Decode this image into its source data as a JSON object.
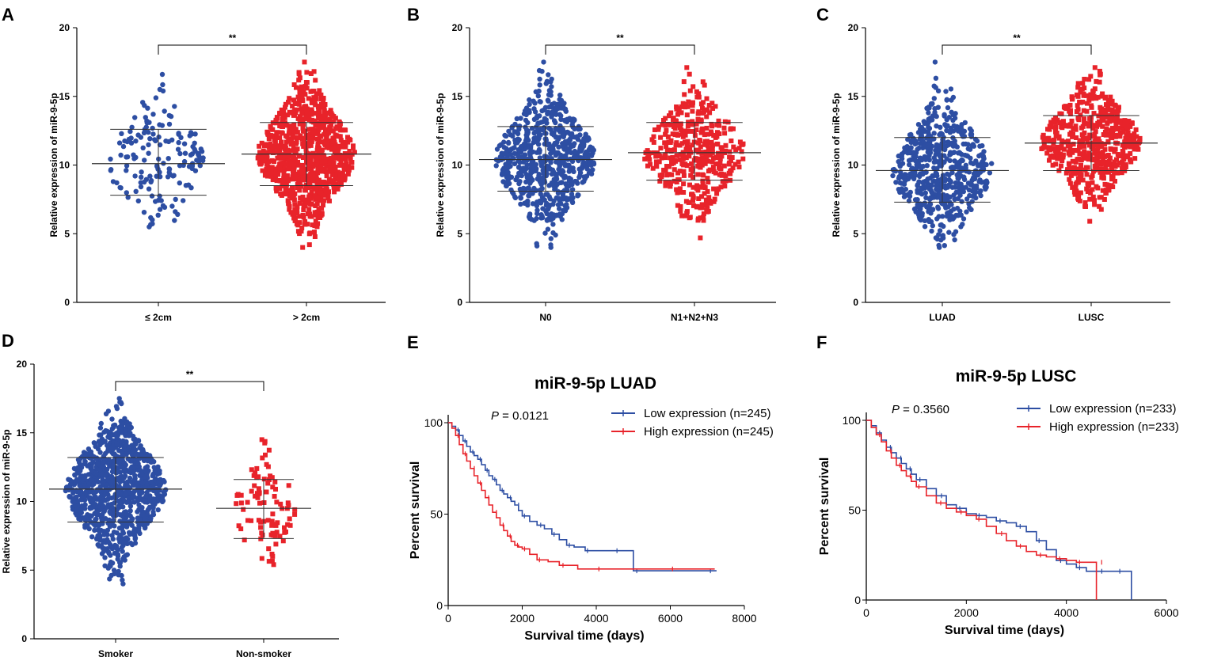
{
  "colors": {
    "low": "#2d4ea3",
    "high": "#e8232a",
    "axis": "#000000"
  },
  "chart_data": [
    {
      "id": "A",
      "type": "scatter",
      "panel_label": "A",
      "ylabel": "Relative expression of miR-9-5p",
      "ylim": [
        0,
        20
      ],
      "yticks": [
        0,
        5,
        10,
        15,
        20
      ],
      "significance": "**",
      "groups": [
        {
          "name": "≤ 2cm",
          "shape": "circle",
          "color": "blue",
          "n": 160,
          "min": 5.5,
          "max": 16.6,
          "mean": 10.1,
          "sd_low": 7.8,
          "sd_high": 12.6,
          "seed": 11
        },
        {
          "name": "> 2cm",
          "shape": "square",
          "color": "red",
          "n": 900,
          "min": 4.0,
          "max": 17.5,
          "mean": 10.8,
          "sd_low": 8.5,
          "sd_high": 13.1,
          "seed": 12
        }
      ]
    },
    {
      "id": "B",
      "type": "scatter",
      "panel_label": "B",
      "ylabel": "Relative expression of miR-9-5p",
      "ylim": [
        0,
        20
      ],
      "yticks": [
        0,
        5,
        10,
        15,
        20
      ],
      "significance": "**",
      "groups": [
        {
          "name": "N0",
          "shape": "circle",
          "color": "blue",
          "n": 700,
          "min": 4.0,
          "max": 17.5,
          "mean": 10.4,
          "sd_low": 8.1,
          "sd_high": 12.8,
          "seed": 21
        },
        {
          "name": "N1+N2+N3",
          "shape": "square",
          "color": "red",
          "n": 420,
          "min": 4.7,
          "max": 17.1,
          "mean": 10.9,
          "sd_low": 8.9,
          "sd_high": 13.1,
          "seed": 22
        }
      ]
    },
    {
      "id": "C",
      "type": "scatter",
      "panel_label": "C",
      "ylabel": "Relative expression of miR-9-5p",
      "ylim": [
        0,
        20
      ],
      "yticks": [
        0,
        5,
        10,
        15,
        20
      ],
      "significance": "**",
      "groups": [
        {
          "name": "LUAD",
          "shape": "circle",
          "color": "blue",
          "n": 620,
          "min": 4.0,
          "max": 17.5,
          "mean": 9.6,
          "sd_low": 7.3,
          "sd_high": 12.0,
          "seed": 31
        },
        {
          "name": "LUSC",
          "shape": "square",
          "color": "red",
          "n": 560,
          "min": 5.9,
          "max": 17.1,
          "mean": 11.6,
          "sd_low": 9.6,
          "sd_high": 13.6,
          "seed": 32
        }
      ]
    },
    {
      "id": "D",
      "type": "scatter",
      "panel_label": "D",
      "ylabel": "Relative expression of miR-9-5p",
      "ylim": [
        0,
        20
      ],
      "yticks": [
        0,
        5,
        10,
        15,
        20
      ],
      "significance": "**",
      "groups": [
        {
          "name": "Smoker",
          "shape": "circle",
          "color": "blue",
          "n": 1000,
          "min": 4.0,
          "max": 17.5,
          "mean": 10.9,
          "sd_low": 8.5,
          "sd_high": 13.2,
          "seed": 41
        },
        {
          "name": "Non-smoker",
          "shape": "square",
          "color": "red",
          "n": 90,
          "min": 5.4,
          "max": 14.5,
          "mean": 9.5,
          "sd_low": 7.3,
          "sd_high": 11.6,
          "seed": 42
        }
      ]
    },
    {
      "id": "E",
      "type": "line",
      "panel_label": "E",
      "title": "miR-9-5p LUAD",
      "p_value": "0.0121",
      "xlabel": "Survival time (days)",
      "ylabel": "Percent survival",
      "xlim": [
        0,
        8000
      ],
      "xticks": [
        0,
        2000,
        4000,
        6000,
        8000
      ],
      "ylim": [
        0,
        100
      ],
      "yticks": [
        0,
        50,
        100
      ],
      "series": [
        {
          "name": "Low expression (n=245)",
          "color": "blue",
          "x": [
            0,
            100,
            200,
            300,
            400,
            500,
            600,
            700,
            800,
            900,
            1000,
            1100,
            1200,
            1300,
            1400,
            1500,
            1600,
            1700,
            1800,
            1900,
            2000,
            2200,
            2400,
            2600,
            2800,
            3000,
            3200,
            3400,
            3700,
            4000,
            4500,
            4950,
            5000,
            6000,
            7000,
            7250
          ],
          "y": [
            100,
            98,
            96,
            93,
            90,
            87,
            84,
            82,
            80,
            77,
            74,
            71,
            69,
            66,
            63,
            61,
            59,
            57,
            55,
            52,
            49,
            46,
            44,
            42,
            39,
            36,
            33,
            32,
            30,
            30,
            30,
            30,
            19,
            19,
            19,
            19
          ]
        },
        {
          "name": "High expression (n=245)",
          "color": "red",
          "x": [
            0,
            100,
            200,
            300,
            400,
            500,
            600,
            700,
            800,
            900,
            1000,
            1100,
            1200,
            1300,
            1400,
            1500,
            1600,
            1700,
            1800,
            1900,
            2000,
            2200,
            2400,
            2700,
            3000,
            3500,
            4000,
            5000,
            6000,
            7000,
            7200
          ],
          "y": [
            100,
            97,
            93,
            88,
            83,
            79,
            75,
            71,
            67,
            63,
            59,
            55,
            51,
            48,
            44,
            41,
            38,
            35,
            33,
            32,
            31,
            28,
            25,
            24,
            22,
            20,
            20,
            20,
            20,
            20,
            20
          ]
        }
      ]
    },
    {
      "id": "F",
      "type": "line",
      "panel_label": "F",
      "title": "miR-9-5p LUSC",
      "p_value": "0.3560",
      "xlabel": "Survival time (days)",
      "ylabel": "Percent survival",
      "xlim": [
        0,
        6000
      ],
      "xticks": [
        0,
        2000,
        4000,
        6000
      ],
      "ylim": [
        0,
        100
      ],
      "yticks": [
        0,
        50,
        100
      ],
      "series": [
        {
          "name": "Low expression (n=233)",
          "color": "blue",
          "x": [
            0,
            100,
            200,
            300,
            400,
            500,
            600,
            700,
            800,
            900,
            1000,
            1200,
            1400,
            1600,
            1800,
            2000,
            2200,
            2400,
            2600,
            2800,
            3000,
            3200,
            3400,
            3600,
            3800,
            4000,
            4200,
            4400,
            4600,
            4800,
            5000,
            5300,
            5300
          ],
          "y": [
            100,
            97,
            93,
            89,
            85,
            82,
            79,
            76,
            73,
            70,
            67,
            62,
            58,
            53,
            51,
            48,
            47,
            46,
            44,
            43,
            41,
            38,
            33,
            28,
            22,
            20,
            18,
            16,
            16,
            16,
            16,
            16,
            0
          ]
        },
        {
          "name": "High expression (n=233)",
          "color": "red",
          "x": [
            0,
            100,
            200,
            300,
            400,
            500,
            600,
            700,
            800,
            900,
            1000,
            1200,
            1400,
            1600,
            1800,
            2000,
            2200,
            2400,
            2600,
            2800,
            3000,
            3200,
            3400,
            3600,
            3800,
            4000,
            4200,
            4400,
            4600,
            4600
          ],
          "y": [
            100,
            96,
            92,
            88,
            83,
            79,
            75,
            72,
            69,
            66,
            63,
            58,
            54,
            51,
            49,
            47,
            45,
            41,
            37,
            33,
            30,
            27,
            25,
            24,
            23,
            22,
            21,
            21,
            21,
            0
          ]
        }
      ]
    }
  ]
}
